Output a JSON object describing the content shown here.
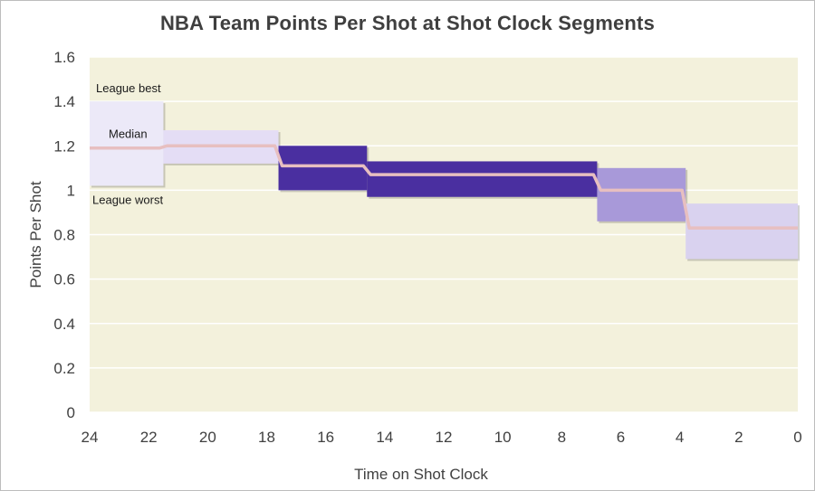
{
  "chart_data": {
    "type": "step-range",
    "title": "NBA Team Points Per Shot at Shot Clock Segments",
    "xlabel": "Time on Shot Clock",
    "ylabel": "Points Per Shot",
    "xlim": [
      24,
      0
    ],
    "ylim": [
      0,
      1.6
    ],
    "x_ticks": [
      24,
      22,
      20,
      18,
      16,
      14,
      12,
      10,
      8,
      6,
      4,
      2,
      0
    ],
    "y_ticks": [
      0,
      0.2,
      0.4,
      0.6,
      0.8,
      1,
      1.2,
      1.4,
      1.6
    ],
    "y_tick_labels": [
      "0",
      "0.2",
      "0.4",
      "0.6",
      "0.8",
      "1",
      "1.2",
      "1.4",
      "1.6"
    ],
    "grid": true,
    "segments": [
      {
        "x_start": 24,
        "x_end": 21.5,
        "worst": 1.02,
        "best": 1.4,
        "median": 1.19,
        "color": "#ece9f8"
      },
      {
        "x_start": 21.5,
        "x_end": 17.6,
        "worst": 1.12,
        "best": 1.27,
        "median": 1.2,
        "color": "#e4ddf5"
      },
      {
        "x_start": 17.6,
        "x_end": 14.6,
        "worst": 1.0,
        "best": 1.2,
        "median": 1.11,
        "color": "#4a2fa0"
      },
      {
        "x_start": 14.6,
        "x_end": 6.8,
        "worst": 0.97,
        "best": 1.13,
        "median": 1.07,
        "color": "#4a2fa0"
      },
      {
        "x_start": 6.8,
        "x_end": 3.8,
        "worst": 0.86,
        "best": 1.1,
        "median": 1.0,
        "color": "#a899d9"
      },
      {
        "x_start": 3.8,
        "x_end": 0,
        "worst": 0.69,
        "best": 0.94,
        "median": 0.83,
        "color": "#d9d2ef"
      }
    ],
    "median_color": "#e7bfc0",
    "plot_background": "#f3f1dc",
    "annotations": {
      "best": "League best",
      "median": "Median",
      "worst": "League worst"
    }
  }
}
